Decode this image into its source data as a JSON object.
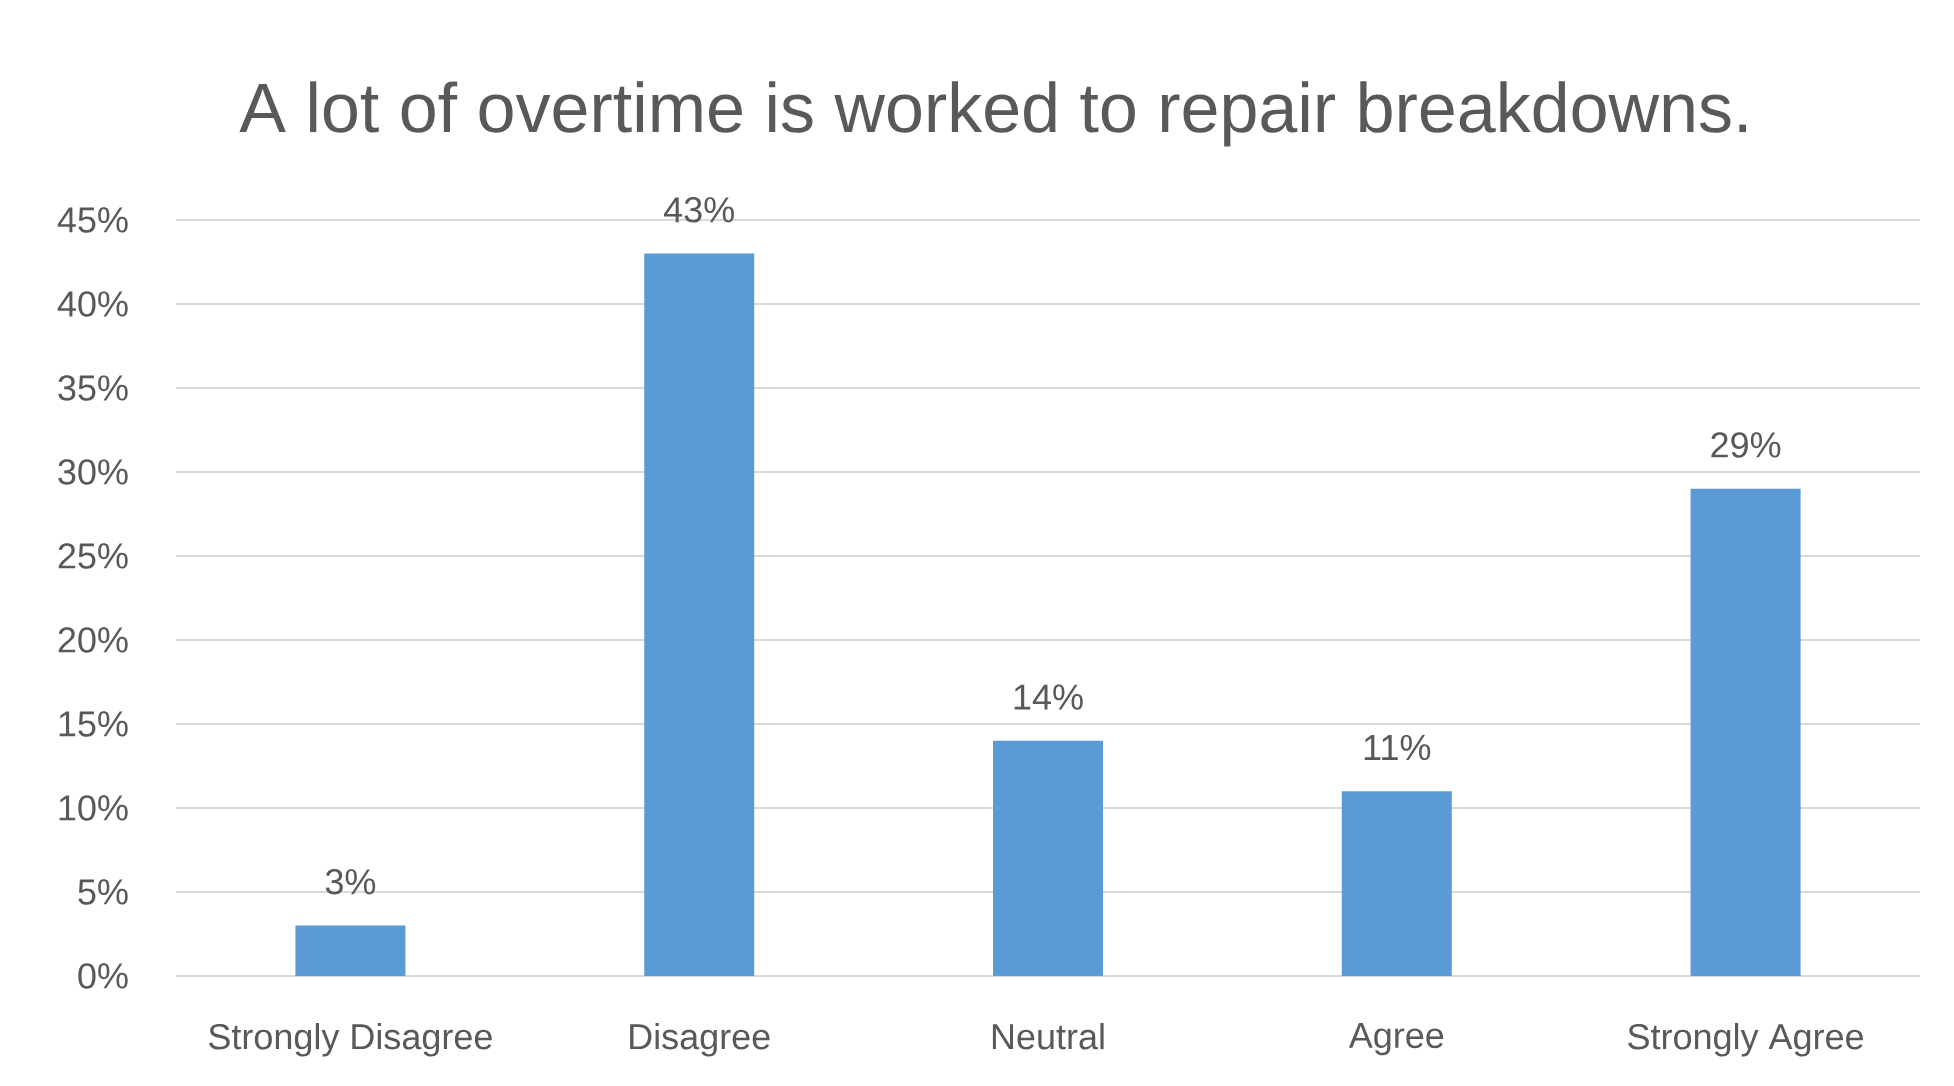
{
  "chart_data": {
    "type": "bar",
    "title": "A lot of overtime is worked to repair breakdowns.",
    "categories": [
      "Strongly Disagree",
      "Disagree",
      "Neutral",
      "Agree",
      "Strongly Agree"
    ],
    "values": [
      3,
      43,
      14,
      11,
      29
    ],
    "color": "#5b9bd5",
    "value_labels": [
      "3%",
      "43%",
      "14%",
      "11%",
      "29%"
    ],
    "ylim": [
      0,
      45
    ],
    "yticks": [
      {
        "value": 0,
        "label": "0%"
      },
      {
        "value": 5,
        "label": "5%"
      },
      {
        "value": 10,
        "label": "10%"
      },
      {
        "value": 15,
        "label": "15%"
      },
      {
        "value": 20,
        "label": "20%"
      },
      {
        "value": 25,
        "label": "25%"
      },
      {
        "value": 30,
        "label": "30%"
      },
      {
        "value": 35,
        "label": "35%"
      },
      {
        "value": 40,
        "label": "40%"
      },
      {
        "value": 45,
        "label": "45%"
      }
    ],
    "grid": "y"
  }
}
